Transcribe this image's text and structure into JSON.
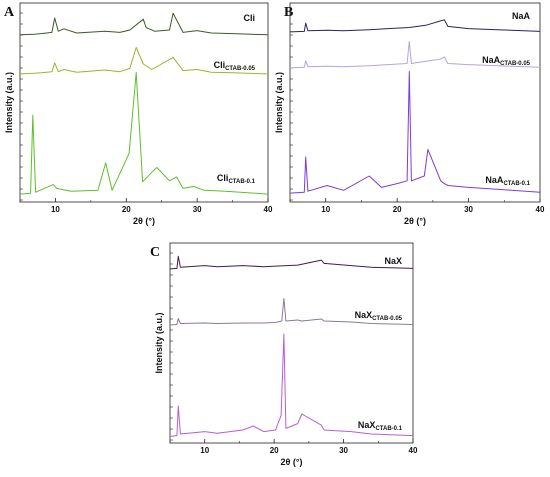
{
  "chart_data": [
    {
      "panel": "A",
      "type": "line",
      "xlabel": "2θ (°)",
      "ylabel": "Intensity (a.u.)",
      "xlim": [
        5,
        40
      ],
      "xticks": [
        10,
        20,
        30,
        40
      ],
      "series": [
        {
          "name": "Cli",
          "name_sub": "",
          "color": "#3d5a26",
          "x": [
            5,
            7,
            8,
            9.5,
            9.9,
            10.4,
            11.2,
            13,
            17,
            19.1,
            20.5,
            22.4,
            22.8,
            24,
            26.1,
            26.6,
            28,
            30,
            32,
            35,
            40
          ],
          "y": [
            2,
            3,
            4,
            6,
            30,
            8,
            12,
            5,
            8,
            6,
            10,
            28,
            14,
            8,
            10,
            38,
            6,
            9,
            5,
            4,
            2
          ]
        },
        {
          "name": "Cli",
          "name_sub": "CTAB-0.05",
          "color": "#9bb52a",
          "x": [
            5,
            7,
            8,
            9.5,
            9.9,
            10.4,
            11.2,
            13,
            17,
            19.1,
            20.5,
            21.4,
            22.4,
            23.6,
            26.6,
            28,
            30,
            32,
            35,
            40
          ],
          "y": [
            2,
            3,
            4,
            6,
            22,
            6,
            10,
            5,
            9,
            6,
            12,
            50,
            20,
            10,
            32,
            8,
            10,
            5,
            4,
            2
          ]
        },
        {
          "name": "Cli",
          "name_sub": "CTAB-0.1",
          "color": "#5fbf2b",
          "x": [
            5,
            6.5,
            6.8,
            7.2,
            9.7,
            10.2,
            12.2,
            16,
            17.1,
            18,
            20.4,
            21.4,
            22.3,
            23.6,
            24.3,
            26.1,
            27.1,
            28,
            29.5,
            31,
            34,
            40
          ],
          "y": [
            2,
            3,
            85,
            4,
            12,
            8,
            5,
            6,
            35,
            6,
            45,
            130,
            15,
            25,
            30,
            16,
            20,
            8,
            10,
            6,
            5,
            2
          ]
        }
      ]
    },
    {
      "panel": "B",
      "type": "line",
      "xlabel": "2θ (°)",
      "ylabel": "Intensity (a.u.)",
      "xlim": [
        5,
        40
      ],
      "xticks": [
        10,
        20,
        30,
        40
      ],
      "series": [
        {
          "name": "NaA",
          "name_sub": "",
          "color": "#2e1f60",
          "x": [
            5,
            7,
            7.2,
            7.5,
            10.2,
            12.5,
            16.1,
            21.7,
            24,
            26.1,
            26.6,
            27.1,
            30,
            34,
            40
          ],
          "y": [
            2,
            3,
            18,
            4,
            5,
            4,
            6,
            10,
            14,
            22,
            24,
            12,
            8,
            6,
            3
          ]
        },
        {
          "name": "NaA",
          "name_sub": "CTAB-0.05",
          "color": "#b7a1e6",
          "x": [
            5,
            7,
            7.2,
            7.5,
            10.2,
            12.5,
            16.1,
            21.4,
            21.7,
            22,
            24,
            26.1,
            26.6,
            27.1,
            30,
            34,
            40
          ],
          "y": [
            2,
            3,
            15,
            4,
            5,
            4,
            6,
            10,
            50,
            10,
            14,
            18,
            22,
            10,
            8,
            6,
            3
          ]
        },
        {
          "name": "NaA",
          "name_sub": "CTAB-0.1",
          "color": "#7a3ddc",
          "x": [
            5,
            7,
            7.2,
            7.5,
            10.2,
            12.5,
            16.1,
            17.8,
            20,
            21.4,
            21.7,
            22,
            23.8,
            24.3,
            26.1,
            26.6,
            27.1,
            30,
            34,
            40
          ],
          "y": [
            2,
            3,
            40,
            4,
            10,
            5,
            20,
            8,
            12,
            15,
            130,
            15,
            20,
            48,
            15,
            12,
            10,
            8,
            6,
            3
          ]
        }
      ]
    },
    {
      "panel": "C",
      "type": "line",
      "xlabel": "2θ (°)",
      "ylabel": "Intensity (a.u.)",
      "xlim": [
        5,
        40
      ],
      "xticks": [
        10,
        20,
        30,
        40
      ],
      "series": [
        {
          "name": "NaX",
          "name_sub": "",
          "color": "#3f1e4a",
          "x": [
            5,
            6,
            6.2,
            6.5,
            10,
            11.8,
            15.5,
            18.5,
            20.2,
            23.4,
            26.8,
            27.2,
            31.1,
            34,
            40
          ],
          "y": [
            2,
            3,
            25,
            5,
            8,
            6,
            8,
            6,
            7,
            9,
            18,
            12,
            8,
            5,
            3
          ]
        },
        {
          "name": "NaX",
          "name_sub": "CTAB-0.05",
          "color": "#8a7a99",
          "x": [
            5,
            6,
            6.2,
            6.5,
            10,
            11.8,
            15.5,
            18.5,
            20.2,
            21.1,
            21.4,
            21.7,
            23.4,
            24,
            26.8,
            27.2,
            31.1,
            34,
            40
          ],
          "y": [
            2,
            3,
            15,
            5,
            6,
            5,
            6,
            6,
            7,
            10,
            55,
            10,
            12,
            10,
            14,
            10,
            8,
            5,
            3
          ]
        },
        {
          "name": "NaX",
          "name_sub": "CTAB-0.1",
          "color": "#bb5dd2",
          "x": [
            5,
            6,
            6.2,
            6.5,
            10,
            11.8,
            15.5,
            17,
            18.5,
            20.2,
            21,
            21.4,
            21.7,
            23.4,
            24,
            26.8,
            27.2,
            31.1,
            34,
            40
          ],
          "y": [
            2,
            3,
            40,
            5,
            8,
            6,
            10,
            15,
            8,
            10,
            28,
            130,
            12,
            18,
            30,
            16,
            10,
            8,
            5,
            3
          ]
        }
      ]
    }
  ]
}
